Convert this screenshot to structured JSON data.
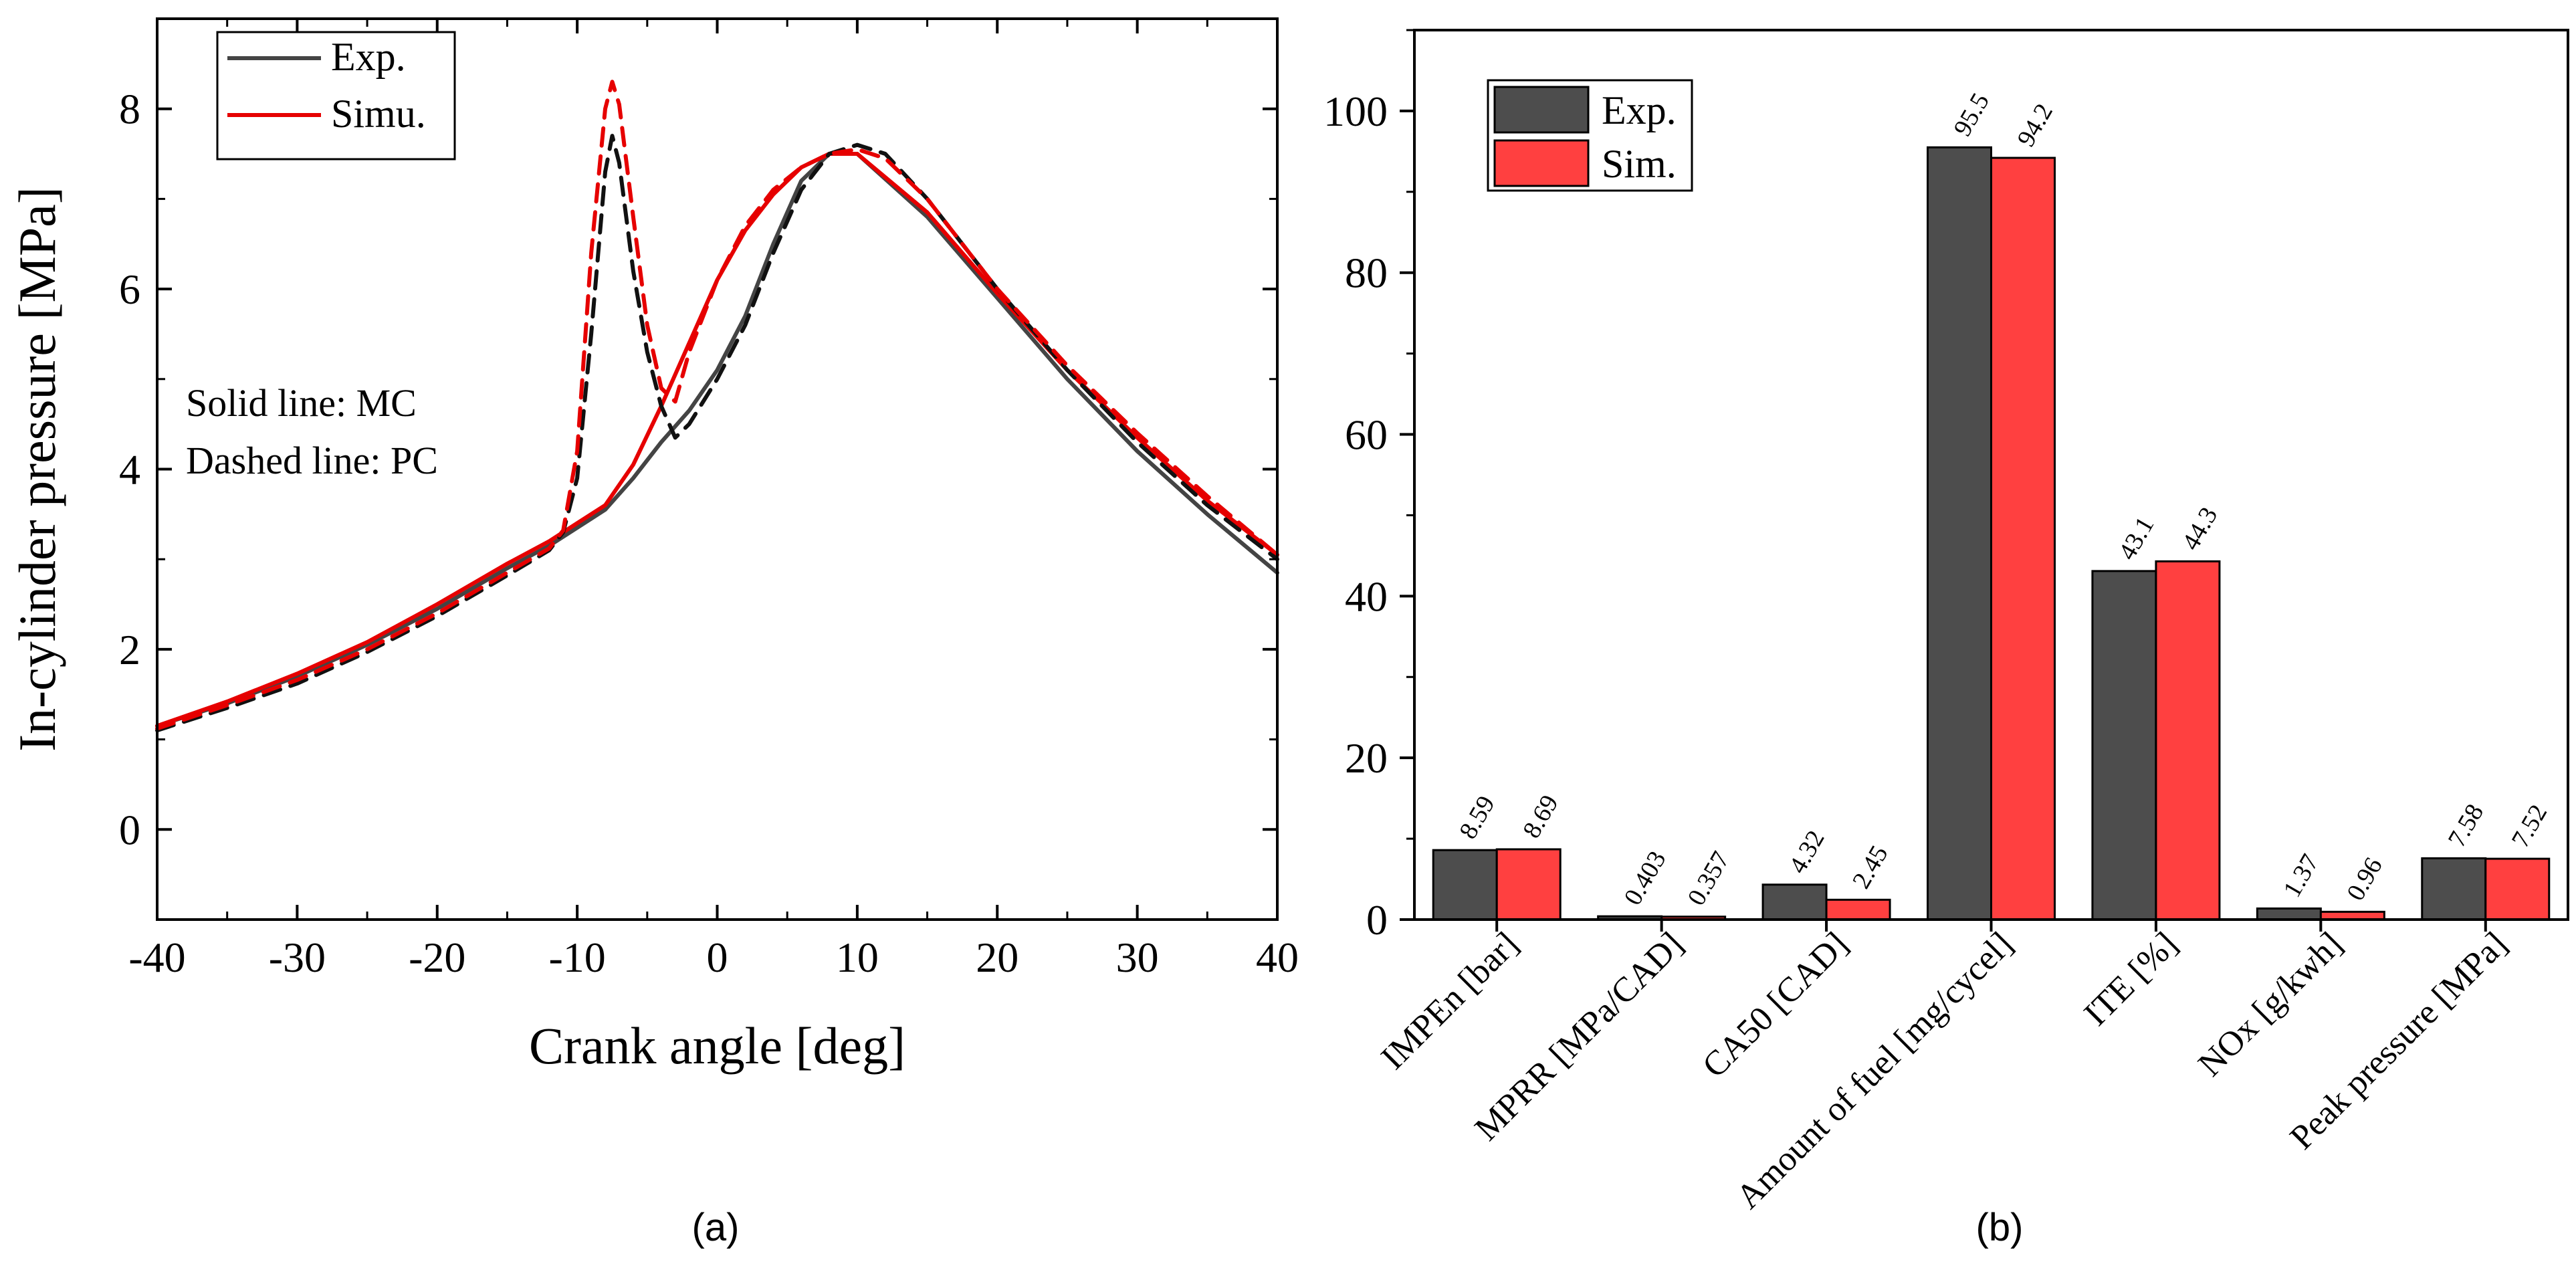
{
  "chart_data": [
    {
      "type": "line",
      "panel_label": "(a)",
      "xlabel": "Crank angle [deg]",
      "ylabel": "In-cylinder pressure [MPa]",
      "xlim": [
        -40,
        40
      ],
      "ylim": [
        -1,
        9
      ],
      "xticks": [
        -40,
        -30,
        -20,
        -10,
        0,
        10,
        20,
        30,
        40
      ],
      "yticks": [
        0,
        2,
        4,
        6,
        8
      ],
      "xtick_labels": [
        "-40",
        "-30",
        "-20",
        "-10",
        "0",
        "10",
        "20",
        "30",
        "40"
      ],
      "ytick_labels": [
        "0",
        "2",
        "4",
        "6",
        "8"
      ],
      "legend": {
        "position": "top-left",
        "entries": [
          "Exp.",
          "Simu."
        ]
      },
      "annotations": [
        "Solid line: MC",
        "Dashed line: PC"
      ],
      "colors": {
        "exp": "#444444",
        "sim": "#e60000",
        "exp_pc": "#111111",
        "sim_pc": "#e60000"
      },
      "series": [
        {
          "name": "Exp.",
          "style": "solid",
          "color": "#444444",
          "x": [
            -40,
            -35,
            -30,
            -25,
            -20,
            -15,
            -12,
            -10,
            -8,
            -6,
            -4,
            -2,
            0,
            2,
            4,
            6,
            8,
            10,
            15,
            20,
            25,
            30,
            35,
            40
          ],
          "y": [
            1.15,
            1.4,
            1.7,
            2.05,
            2.45,
            2.9,
            3.15,
            3.35,
            3.55,
            3.9,
            4.3,
            4.65,
            5.1,
            5.7,
            6.5,
            7.2,
            7.5,
            7.5,
            6.8,
            5.9,
            5.0,
            4.2,
            3.5,
            2.85
          ]
        },
        {
          "name": "Simu.",
          "style": "solid",
          "color": "#e60000",
          "x": [
            -40,
            -35,
            -30,
            -25,
            -20,
            -15,
            -12,
            -10,
            -8,
            -6,
            -4,
            -2,
            0,
            2,
            4,
            6,
            8,
            10,
            15,
            20,
            25,
            30,
            35,
            40
          ],
          "y": [
            1.15,
            1.42,
            1.73,
            2.08,
            2.5,
            2.95,
            3.2,
            3.4,
            3.6,
            4.05,
            4.7,
            5.4,
            6.1,
            6.65,
            7.05,
            7.35,
            7.5,
            7.5,
            6.85,
            5.95,
            5.1,
            4.35,
            3.65,
            3.05
          ]
        },
        {
          "name": "Exp. PC",
          "style": "dashed",
          "color": "#111111",
          "x": [
            -40,
            -35,
            -30,
            -25,
            -20,
            -15,
            -12,
            -11,
            -10,
            -9,
            -8,
            -7.5,
            -7,
            -6,
            -5,
            -4,
            -3,
            -2,
            0,
            2,
            4,
            6,
            8,
            10,
            12,
            15,
            20,
            25,
            30,
            35,
            40
          ],
          "y": [
            1.1,
            1.35,
            1.62,
            1.97,
            2.37,
            2.82,
            3.1,
            3.3,
            3.9,
            5.5,
            7.3,
            7.7,
            7.4,
            6.2,
            5.3,
            4.7,
            4.35,
            4.5,
            5.0,
            5.6,
            6.4,
            7.1,
            7.5,
            7.6,
            7.5,
            7.0,
            6.0,
            5.1,
            4.3,
            3.6,
            3.0
          ]
        },
        {
          "name": "Simu. PC",
          "style": "dashed",
          "color": "#e60000",
          "x": [
            -40,
            -35,
            -30,
            -25,
            -20,
            -15,
            -12,
            -11,
            -10,
            -9,
            -8,
            -7.5,
            -7,
            -6,
            -5,
            -4,
            -3,
            -2,
            0,
            2,
            4,
            6,
            8,
            10,
            12,
            15,
            20,
            25,
            30,
            35,
            40
          ],
          "y": [
            1.12,
            1.38,
            1.66,
            2.0,
            2.4,
            2.85,
            3.12,
            3.32,
            4.2,
            6.4,
            8.0,
            8.3,
            8.05,
            6.8,
            5.6,
            4.9,
            4.75,
            5.3,
            6.1,
            6.7,
            7.1,
            7.35,
            7.5,
            7.55,
            7.45,
            7.0,
            6.0,
            5.15,
            4.4,
            3.7,
            3.05
          ]
        }
      ]
    },
    {
      "type": "bar",
      "panel_label": "(b)",
      "xlabel": "",
      "ylabel": "",
      "ylim": [
        0,
        110
      ],
      "yticks": [
        0,
        20,
        40,
        60,
        80,
        100
      ],
      "ytick_labels": [
        "0",
        "20",
        "40",
        "60",
        "80",
        "100"
      ],
      "legend": {
        "position": "top-left",
        "entries": [
          "Exp.",
          "Sim."
        ]
      },
      "colors": {
        "exp": "#4d4d4d",
        "sim": "#ff4040"
      },
      "categories": [
        "IMPEn [bar]",
        "MPRR [MPa/CAD]",
        "CA50 [CAD]",
        "Amount of fuel [mg/cycel]",
        "ITE [%]",
        "NOx [g/kwh]",
        "Peak pressure [MPa]"
      ],
      "series": [
        {
          "name": "Exp.",
          "values": [
            8.59,
            0.403,
            4.32,
            95.5,
            43.1,
            1.37,
            7.58
          ],
          "labels": [
            "8.59",
            "0.403",
            "4.32",
            "95.5",
            "43.1",
            "1.37",
            "7.58"
          ]
        },
        {
          "name": "Sim.",
          "values": [
            8.69,
            0.357,
            2.45,
            94.2,
            44.3,
            0.96,
            7.52
          ],
          "labels": [
            "8.69",
            "0.357",
            "2.45",
            "94.2",
            "44.3",
            "0.96",
            "7.52"
          ]
        }
      ]
    }
  ]
}
